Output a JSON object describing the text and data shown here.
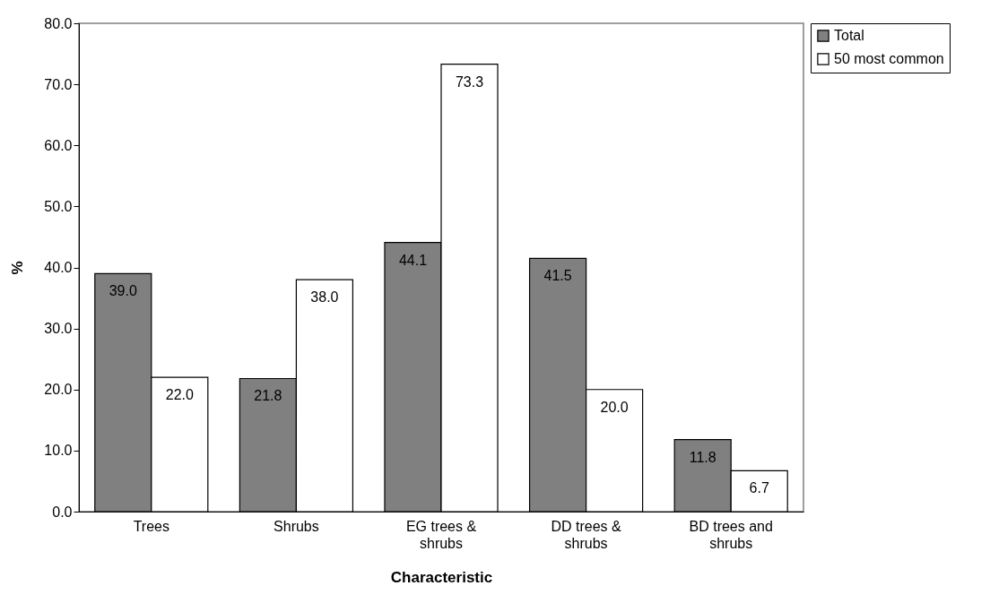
{
  "chart_data": {
    "type": "bar",
    "xlabel": "Characteristic",
    "ylabel": "%",
    "categories": [
      "Trees",
      "Shrubs",
      "EG trees & shrubs",
      "DD trees & shrubs",
      "BD trees and shrubs"
    ],
    "series": [
      {
        "name": "Total",
        "color": "#808080",
        "values": [
          39.0,
          21.8,
          44.1,
          41.5,
          11.8
        ],
        "value_labels": [
          "39.0",
          "21.8",
          "44.1",
          "41.5",
          "11.8"
        ]
      },
      {
        "name": "50 most common",
        "color": "#ffffff",
        "values": [
          22.0,
          38.0,
          73.3,
          20.0,
          6.7
        ],
        "value_labels": [
          "22.0",
          "38.0",
          "73.3",
          "20.0",
          "6.7"
        ]
      }
    ],
    "ylim": [
      0,
      80
    ],
    "yticks": [
      {
        "value": 0,
        "label": "0.0"
      },
      {
        "value": 10,
        "label": "10.0"
      },
      {
        "value": 20,
        "label": "20.0"
      },
      {
        "value": 30,
        "label": "30.0"
      },
      {
        "value": 40,
        "label": "40.0"
      },
      {
        "value": 50,
        "label": "50.0"
      },
      {
        "value": 60,
        "label": "60.0"
      },
      {
        "value": 70,
        "label": "70.0"
      },
      {
        "value": 80,
        "label": "80.0"
      }
    ],
    "grid": false,
    "legend": "right"
  }
}
